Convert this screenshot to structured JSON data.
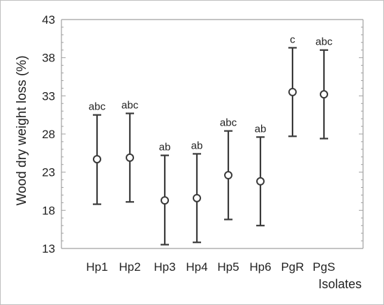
{
  "chart_data": {
    "type": "scatter",
    "subtype": "means-with-error-bars",
    "title": "",
    "xlabel": "Isolates",
    "ylabel": "Wood dry weight loss (%)",
    "ylim": [
      13,
      43
    ],
    "yticks": [
      13,
      18,
      23,
      28,
      33,
      38,
      43
    ],
    "grid": false,
    "categories": [
      "Hp1",
      "Hp2",
      "Hp3",
      "Hp4",
      "Hp5",
      "Hp6",
      "PgR",
      "PgS"
    ],
    "means": [
      24.7,
      24.9,
      19.3,
      19.6,
      22.6,
      21.8,
      33.5,
      33.2
    ],
    "lower": [
      18.8,
      19.1,
      13.5,
      13.8,
      16.8,
      16.0,
      27.7,
      27.4
    ],
    "upper": [
      30.5,
      30.7,
      25.2,
      25.4,
      28.4,
      27.6,
      39.3,
      39.0
    ],
    "group_labels": [
      "abc",
      "abc",
      "ab",
      "ab",
      "abc",
      "ab",
      "c",
      "abc"
    ]
  },
  "colors": {
    "series": "#3a3a3a",
    "axis": "#a0a0a0",
    "frame": "#bfbfbf"
  }
}
